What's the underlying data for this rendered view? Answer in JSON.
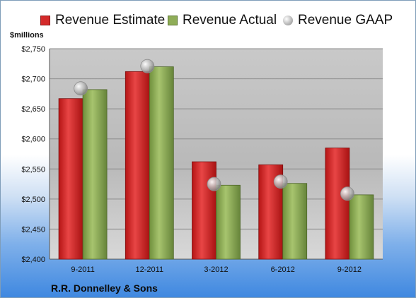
{
  "chart_data": {
    "type": "bar",
    "categories": [
      "9-2011",
      "12-2011",
      "3-2012",
      "6-2012",
      "9-2012"
    ],
    "series": [
      {
        "name": "Revenue Estimate",
        "type": "bar",
        "color": "#d42a2a",
        "values": [
          2667,
          2712,
          2562,
          2557,
          2585
        ]
      },
      {
        "name": "Revenue Actual",
        "type": "bar",
        "color": "#8fad58",
        "values": [
          2682,
          2720,
          2523,
          2526,
          2507
        ]
      },
      {
        "name": "Revenue GAAP",
        "type": "marker",
        "color": "#c8c8c8",
        "values": [
          2684,
          2721,
          2525,
          2529,
          2509
        ]
      }
    ],
    "ylabel": "$millions",
    "ylim": [
      2400,
      2750
    ],
    "yticks": [
      2400,
      2450,
      2500,
      2550,
      2600,
      2650,
      2700,
      2750
    ],
    "ytick_labels": [
      "$2,400",
      "$2,450",
      "$2,500",
      "$2,550",
      "$2,600",
      "$2,650",
      "$2,700",
      "$2,750"
    ],
    "grid": true,
    "legend_position": "top"
  },
  "footer": {
    "company": "R.R. Donnelley & Sons"
  }
}
